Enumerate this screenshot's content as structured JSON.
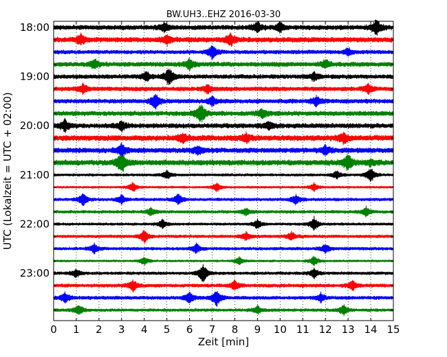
{
  "chart_data": {
    "type": "line",
    "title": "BW.UH3..EHZ 2016-03-30",
    "xlabel": "Zeit  [min]",
    "ylabel": "UTC (Lokalzeit = UTC + 02:00)",
    "xlim": [
      0,
      15
    ],
    "x_ticks": [
      "0",
      "1",
      "2",
      "3",
      "4",
      "5",
      "6",
      "7",
      "8",
      "9",
      "10",
      "11",
      "12",
      "13",
      "14",
      "15"
    ],
    "y_tick_labels": [
      "18:00",
      "19:00",
      "20:00",
      "21:00",
      "22:00",
      "23:00"
    ],
    "grid": "vertical dotted",
    "color_cycle": [
      "#000000",
      "#ff0000",
      "#0000ff",
      "#008000"
    ],
    "traces": [
      {
        "start": "18:00",
        "amplitude": 0.55,
        "events": [
          [
            14.25,
            1.6
          ],
          [
            9.0,
            1.2
          ],
          [
            4.9,
            1.0
          ],
          [
            10.0,
            1.0
          ]
        ]
      },
      {
        "start": "18:15",
        "amplitude": 0.6,
        "events": [
          [
            7.8,
            1.3
          ],
          [
            1.2,
            1.0
          ],
          [
            5.0,
            1.0
          ]
        ]
      },
      {
        "start": "18:30",
        "amplitude": 0.45,
        "events": [
          [
            7.0,
            1.4
          ],
          [
            13.0,
            0.8
          ]
        ]
      },
      {
        "start": "18:45",
        "amplitude": 0.55,
        "events": [
          [
            6.0,
            1.1
          ],
          [
            1.8,
            1.0
          ],
          [
            12.0,
            0.9
          ]
        ]
      },
      {
        "start": "19:00",
        "amplitude": 0.5,
        "events": [
          [
            5.1,
            2.0
          ],
          [
            4.1,
            1.0
          ],
          [
            11.5,
            0.9
          ]
        ]
      },
      {
        "start": "19:15",
        "amplitude": 0.5,
        "events": [
          [
            1.3,
            1.0
          ],
          [
            6.8,
            0.9
          ],
          [
            13.9,
            1.1
          ]
        ]
      },
      {
        "start": "19:30",
        "amplitude": 0.5,
        "events": [
          [
            4.5,
            1.6
          ],
          [
            11.6,
            1.0
          ],
          [
            7.0,
            0.9
          ]
        ]
      },
      {
        "start": "19:45",
        "amplitude": 0.55,
        "events": [
          [
            6.5,
            2.2
          ],
          [
            9.2,
            1.0
          ]
        ]
      },
      {
        "start": "20:00",
        "amplitude": 0.55,
        "events": [
          [
            0.5,
            1.2
          ],
          [
            3.0,
            1.0
          ],
          [
            9.5,
            0.9
          ]
        ]
      },
      {
        "start": "20:15",
        "amplitude": 0.65,
        "events": [
          [
            12.8,
            1.2
          ],
          [
            8.5,
            0.9
          ],
          [
            5.7,
            0.9
          ]
        ]
      },
      {
        "start": "20:30",
        "amplitude": 0.6,
        "events": [
          [
            3.0,
            1.3
          ],
          [
            6.4,
            1.0
          ],
          [
            12.0,
            0.9
          ]
        ]
      },
      {
        "start": "20:45",
        "amplitude": 0.65,
        "events": [
          [
            3.0,
            2.3
          ],
          [
            13.0,
            1.8
          ],
          [
            14.0,
            0.6
          ]
        ]
      },
      {
        "start": "21:00",
        "amplitude": 0.3,
        "events": [
          [
            14.0,
            1.6
          ],
          [
            5.0,
            1.0
          ],
          [
            12.5,
            0.9
          ]
        ]
      },
      {
        "start": "21:15",
        "amplitude": 0.25,
        "events": [
          [
            3.5,
            1.0
          ],
          [
            7.2,
            1.0
          ],
          [
            11.5,
            0.8
          ]
        ]
      },
      {
        "start": "21:30",
        "amplitude": 0.35,
        "events": [
          [
            1.3,
            1.3
          ],
          [
            5.5,
            1.2
          ],
          [
            10.7,
            1.0
          ],
          [
            3.0,
            0.9
          ]
        ]
      },
      {
        "start": "21:45",
        "amplitude": 0.35,
        "events": [
          [
            13.8,
            1.0
          ],
          [
            4.3,
            0.8
          ],
          [
            8.5,
            0.8
          ]
        ]
      },
      {
        "start": "22:00",
        "amplitude": 0.3,
        "events": [
          [
            11.5,
            1.4
          ],
          [
            9.0,
            1.0
          ],
          [
            4.8,
            0.9
          ]
        ]
      },
      {
        "start": "22:15",
        "amplitude": 0.35,
        "events": [
          [
            4.0,
            1.4
          ],
          [
            8.5,
            0.9
          ],
          [
            10.5,
            0.9
          ]
        ]
      },
      {
        "start": "22:30",
        "amplitude": 0.35,
        "events": [
          [
            1.8,
            1.0
          ],
          [
            6.3,
            1.0
          ],
          [
            12.0,
            0.9
          ]
        ]
      },
      {
        "start": "22:45",
        "amplitude": 0.25,
        "events": [
          [
            11.5,
            1.0
          ],
          [
            4.0,
            0.8
          ],
          [
            8.2,
            0.8
          ]
        ]
      },
      {
        "start": "23:00",
        "amplitude": 0.35,
        "events": [
          [
            6.6,
            2.1
          ],
          [
            11.5,
            1.0
          ],
          [
            1.0,
            0.9
          ]
        ]
      },
      {
        "start": "23:15",
        "amplitude": 0.4,
        "events": [
          [
            3.5,
            1.2
          ],
          [
            8.0,
            1.0
          ],
          [
            13.2,
            1.0
          ]
        ]
      },
      {
        "start": "23:30",
        "amplitude": 0.4,
        "events": [
          [
            7.2,
            1.8
          ],
          [
            6.0,
            1.3
          ],
          [
            0.5,
            1.0
          ],
          [
            11.8,
            0.9
          ]
        ]
      },
      {
        "start": "23:45",
        "amplitude": 0.35,
        "events": [
          [
            1.1,
            1.2
          ],
          [
            12.8,
            1.1
          ],
          [
            9.0,
            0.9
          ]
        ]
      }
    ]
  }
}
